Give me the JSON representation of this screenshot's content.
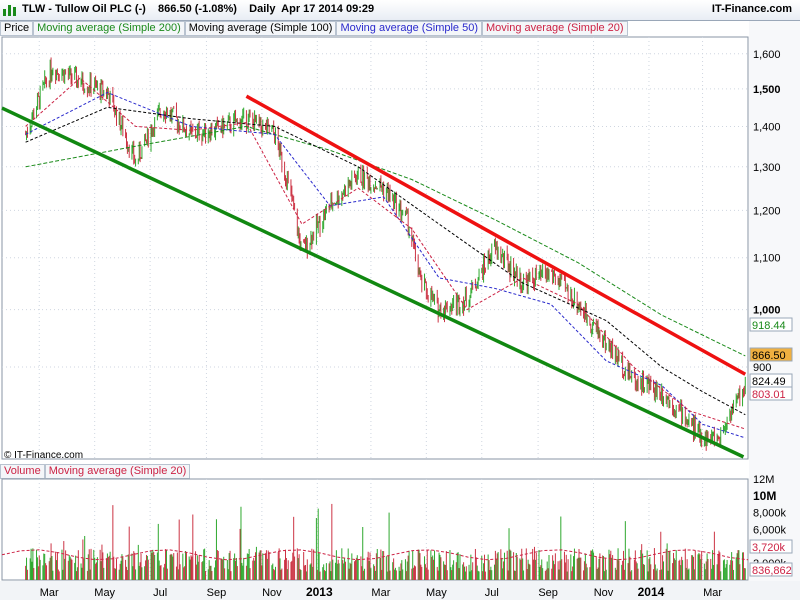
{
  "header": {
    "title": "TLW - Tullow Oil PLC (-)    866.50 (-1.08%)    Daily  Apr 17 2014 09:29",
    "brand": "IT-Finance.com"
  },
  "price_legend": [
    {
      "label": "Price",
      "color": "#000000"
    },
    {
      "label": "Moving average (Simple 200)",
      "color": "#1a8a1a"
    },
    {
      "label": "Moving average (Simple 100)",
      "color": "#000000"
    },
    {
      "label": "Moving average (Simple 50)",
      "color": "#2a2acc"
    },
    {
      "label": "Moving average (Simple 20)",
      "color": "#cc2244"
    }
  ],
  "volume_legend": [
    {
      "label": "Volume",
      "color": "#cc2244"
    },
    {
      "label": "Moving average (Simple 20)",
      "color": "#cc2244"
    }
  ],
  "copyright": "© IT-Finance.com",
  "chart_data": {
    "type": "line",
    "price_axis": {
      "ticks": [
        "1,600",
        "1,500",
        "1,400",
        "1,300",
        "1,200",
        "1,100",
        "1,000",
        "900"
      ],
      "tick_values": [
        1600,
        1500,
        1400,
        1300,
        1200,
        1100,
        1000,
        900
      ],
      "major": [
        1500,
        1000
      ],
      "scale": "log",
      "range": [
        760,
        1650
      ]
    },
    "price_badges": [
      {
        "label": "918.44",
        "value": 918.44,
        "color": "#1a8a1a",
        "bg": "#ffffff"
      },
      {
        "label": "866.50",
        "value": 866.5,
        "color": "#000000",
        "bg": "#f0b040"
      },
      {
        "label": "824.49",
        "value": 824.49,
        "color": "#000000",
        "bg": "#ffffff"
      },
      {
        "label": "803.01",
        "value": 803.01,
        "color": "#cc2244",
        "bg": "#ffffff"
      }
    ],
    "volume_axis": {
      "ticks": [
        "12M",
        "10M",
        "8,000k",
        "6,000k",
        "4,000k",
        "2,000k"
      ],
      "tick_values": [
        12000000,
        10000000,
        8000000,
        6000000,
        4000000,
        2000000
      ],
      "major": [
        10000000
      ],
      "range": [
        0,
        12000000
      ]
    },
    "volume_badges": [
      {
        "label": "3,720k",
        "value": 3720000,
        "color": "#cc2244"
      },
      {
        "label": "836,862",
        "value": 836862,
        "color": "#cc2244"
      }
    ],
    "x_axis": {
      "ticks": [
        "Mar",
        "May",
        "Jul",
        "Sep",
        "Nov",
        "2013",
        "Mar",
        "May",
        "Jul",
        "Sep",
        "Nov",
        "2014",
        "Mar"
      ],
      "major": [
        "2013",
        "2014"
      ]
    },
    "series": [
      {
        "name": "Price",
        "x": [
          "2012-02-15",
          "2012-03-15",
          "2012-04-15",
          "2012-05-15",
          "2012-06-15",
          "2012-07-15",
          "2012-08-15",
          "2012-09-15",
          "2012-10-15",
          "2012-11-15",
          "2012-12-01",
          "2012-12-15",
          "2013-01-15",
          "2013-02-15",
          "2013-03-15",
          "2013-04-10",
          "2013-04-25",
          "2013-05-15",
          "2013-06-15",
          "2013-07-15",
          "2013-08-15",
          "2013-09-15",
          "2013-10-15",
          "2013-11-15",
          "2013-12-15",
          "2014-01-15",
          "2014-02-10",
          "2014-03-01",
          "2014-03-20",
          "2014-04-01",
          "2014-04-17"
        ],
        "values": [
          1380,
          1560,
          1520,
          1490,
          1310,
          1450,
          1380,
          1395,
          1420,
          1380,
          1250,
          1110,
          1210,
          1280,
          1250,
          1180,
          1050,
          1000,
          1020,
          1120,
          1050,
          1070,
          1010,
          940,
          880,
          860,
          820,
          790,
          790,
          830,
          866.5
        ]
      },
      {
        "name": "Moving average (Simple 200)",
        "x": [
          "2012-02-15",
          "2012-06-15",
          "2012-10-15",
          "2013-01-15",
          "2013-04-15",
          "2013-07-15",
          "2013-10-15",
          "2014-01-15",
          "2014-04-17"
        ],
        "values": [
          1300,
          1350,
          1400,
          1340,
          1270,
          1180,
          1090,
          990,
          918.44
        ]
      },
      {
        "name": "Moving average (Simple 100)",
        "x": [
          "2012-02-15",
          "2012-05-15",
          "2012-08-15",
          "2012-11-15",
          "2013-02-15",
          "2013-05-15",
          "2013-08-15",
          "2013-11-15",
          "2014-01-15",
          "2014-03-01",
          "2014-04-17"
        ],
        "values": [
          1360,
          1450,
          1420,
          1400,
          1300,
          1170,
          1050,
          980,
          900,
          860,
          824.49
        ]
      },
      {
        "name": "Moving average (Simple 50)",
        "x": [
          "2012-02-15",
          "2012-05-15",
          "2012-08-15",
          "2012-11-15",
          "2013-01-15",
          "2013-03-15",
          "2013-05-15",
          "2013-07-15",
          "2013-09-15",
          "2013-11-15",
          "2014-01-15",
          "2014-03-01",
          "2014-04-17"
        ],
        "values": [
          1380,
          1490,
          1400,
          1380,
          1210,
          1230,
          1060,
          1040,
          1010,
          910,
          870,
          810,
          790
        ]
      },
      {
        "name": "Moving average (Simple 20)",
        "x": [
          "2012-02-15",
          "2012-04-15",
          "2012-06-15",
          "2012-08-15",
          "2012-10-15",
          "2012-12-15",
          "2013-02-15",
          "2013-04-15",
          "2013-06-15",
          "2013-08-15",
          "2013-10-15",
          "2013-12-15",
          "2014-02-15",
          "2014-04-17"
        ],
        "values": [
          1400,
          1530,
          1400,
          1390,
          1410,
          1170,
          1250,
          1160,
          1000,
          1060,
          1010,
          900,
          830,
          803.01
        ]
      }
    ],
    "trendlines": [
      {
        "color": "#ee1111",
        "x": [
          "2012-10-15",
          "2014-04-17"
        ],
        "values": [
          1480,
          888
        ]
      },
      {
        "color": "#118811",
        "x": [
          "2012-01-20",
          "2014-04-15"
        ],
        "values": [
          1448,
          763
        ]
      }
    ],
    "colors": {
      "up": "#2ea82e",
      "down": "#cc3344",
      "grid": "#cfd6e0"
    }
  }
}
